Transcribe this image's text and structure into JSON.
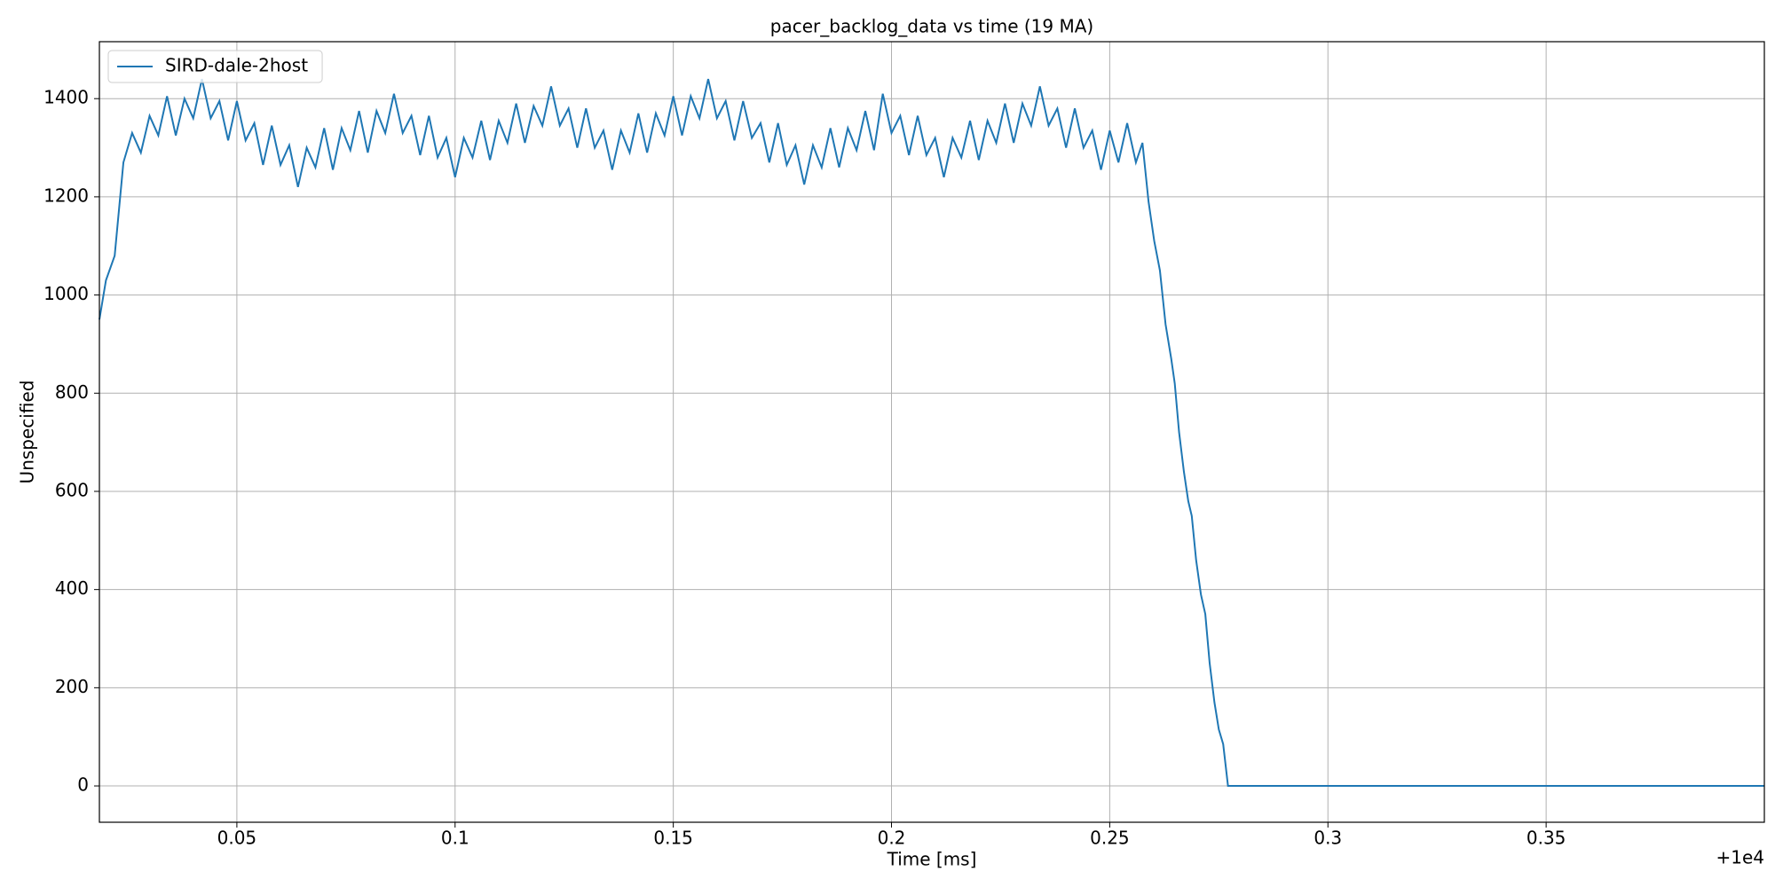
{
  "chart_data": {
    "type": "line",
    "title": "pacer_backlog_data vs time (19 MA)",
    "xlabel": "Time [ms]",
    "ylabel": "Unspecified",
    "x_offset_label": "+1e4",
    "x": [
      0.0185,
      0.02,
      0.022,
      0.024,
      0.026,
      0.028,
      0.03,
      0.032,
      0.034,
      0.036,
      0.038,
      0.04,
      0.042,
      0.044,
      0.046,
      0.048,
      0.05,
      0.052,
      0.054,
      0.056,
      0.058,
      0.06,
      0.062,
      0.064,
      0.066,
      0.068,
      0.07,
      0.072,
      0.074,
      0.076,
      0.078,
      0.08,
      0.082,
      0.084,
      0.086,
      0.088,
      0.09,
      0.092,
      0.094,
      0.096,
      0.098,
      0.1,
      0.102,
      0.104,
      0.106,
      0.108,
      0.11,
      0.112,
      0.114,
      0.116,
      0.118,
      0.12,
      0.122,
      0.124,
      0.126,
      0.128,
      0.13,
      0.132,
      0.134,
      0.136,
      0.138,
      0.14,
      0.142,
      0.144,
      0.146,
      0.148,
      0.15,
      0.152,
      0.154,
      0.156,
      0.158,
      0.16,
      0.162,
      0.164,
      0.166,
      0.168,
      0.17,
      0.172,
      0.174,
      0.176,
      0.178,
      0.18,
      0.182,
      0.184,
      0.186,
      0.188,
      0.19,
      0.192,
      0.194,
      0.196,
      0.198,
      0.2,
      0.202,
      0.204,
      0.206,
      0.208,
      0.21,
      0.212,
      0.214,
      0.216,
      0.218,
      0.22,
      0.222,
      0.224,
      0.226,
      0.228,
      0.23,
      0.232,
      0.234,
      0.236,
      0.238,
      0.24,
      0.242,
      0.244,
      0.246,
      0.248,
      0.25,
      0.252,
      0.254,
      0.256,
      0.2575,
      0.2589,
      0.2602,
      0.2615,
      0.2628,
      0.2641,
      0.2649,
      0.2659,
      0.267,
      0.268,
      0.2688,
      0.2698,
      0.2709,
      0.2719,
      0.2729,
      0.274,
      0.275,
      0.276,
      0.2771,
      0.3,
      0.35,
      0.4
    ],
    "series": [
      {
        "name": "SIRD-dale-2host",
        "color": "#1f77b4",
        "values": [
          950,
          1030,
          1080,
          1270,
          1330,
          1290,
          1365,
          1325,
          1405,
          1325,
          1400,
          1360,
          1440,
          1360,
          1395,
          1315,
          1395,
          1315,
          1350,
          1265,
          1345,
          1265,
          1305,
          1220,
          1300,
          1260,
          1340,
          1255,
          1340,
          1295,
          1375,
          1290,
          1375,
          1330,
          1410,
          1330,
          1365,
          1285,
          1365,
          1280,
          1320,
          1240,
          1320,
          1280,
          1355,
          1275,
          1355,
          1310,
          1390,
          1310,
          1385,
          1345,
          1425,
          1345,
          1380,
          1300,
          1380,
          1300,
          1335,
          1255,
          1335,
          1290,
          1370,
          1290,
          1370,
          1325,
          1405,
          1325,
          1405,
          1360,
          1440,
          1360,
          1395,
          1315,
          1395,
          1320,
          1350,
          1270,
          1350,
          1265,
          1305,
          1225,
          1305,
          1260,
          1340,
          1260,
          1340,
          1295,
          1375,
          1295,
          1410,
          1330,
          1365,
          1285,
          1365,
          1285,
          1320,
          1240,
          1320,
          1280,
          1355,
          1275,
          1355,
          1310,
          1390,
          1310,
          1390,
          1345,
          1425,
          1345,
          1380,
          1300,
          1380,
          1300,
          1335,
          1255,
          1335,
          1270,
          1350,
          1270,
          1310,
          1190,
          1110,
          1050,
          940,
          870,
          820,
          720,
          640,
          580,
          550,
          460,
          390,
          350,
          250,
          170,
          115,
          85,
          0,
          0,
          0,
          0
        ]
      }
    ],
    "xlim": [
      0.0185,
      0.4
    ],
    "ylim": [
      -74,
      1516
    ],
    "xticks": [
      0.05,
      0.1,
      0.15,
      0.2,
      0.25,
      0.3,
      0.35
    ],
    "yticks": [
      0,
      200,
      400,
      600,
      800,
      1000,
      1200,
      1400
    ],
    "grid": true,
    "legend": "upper left"
  }
}
